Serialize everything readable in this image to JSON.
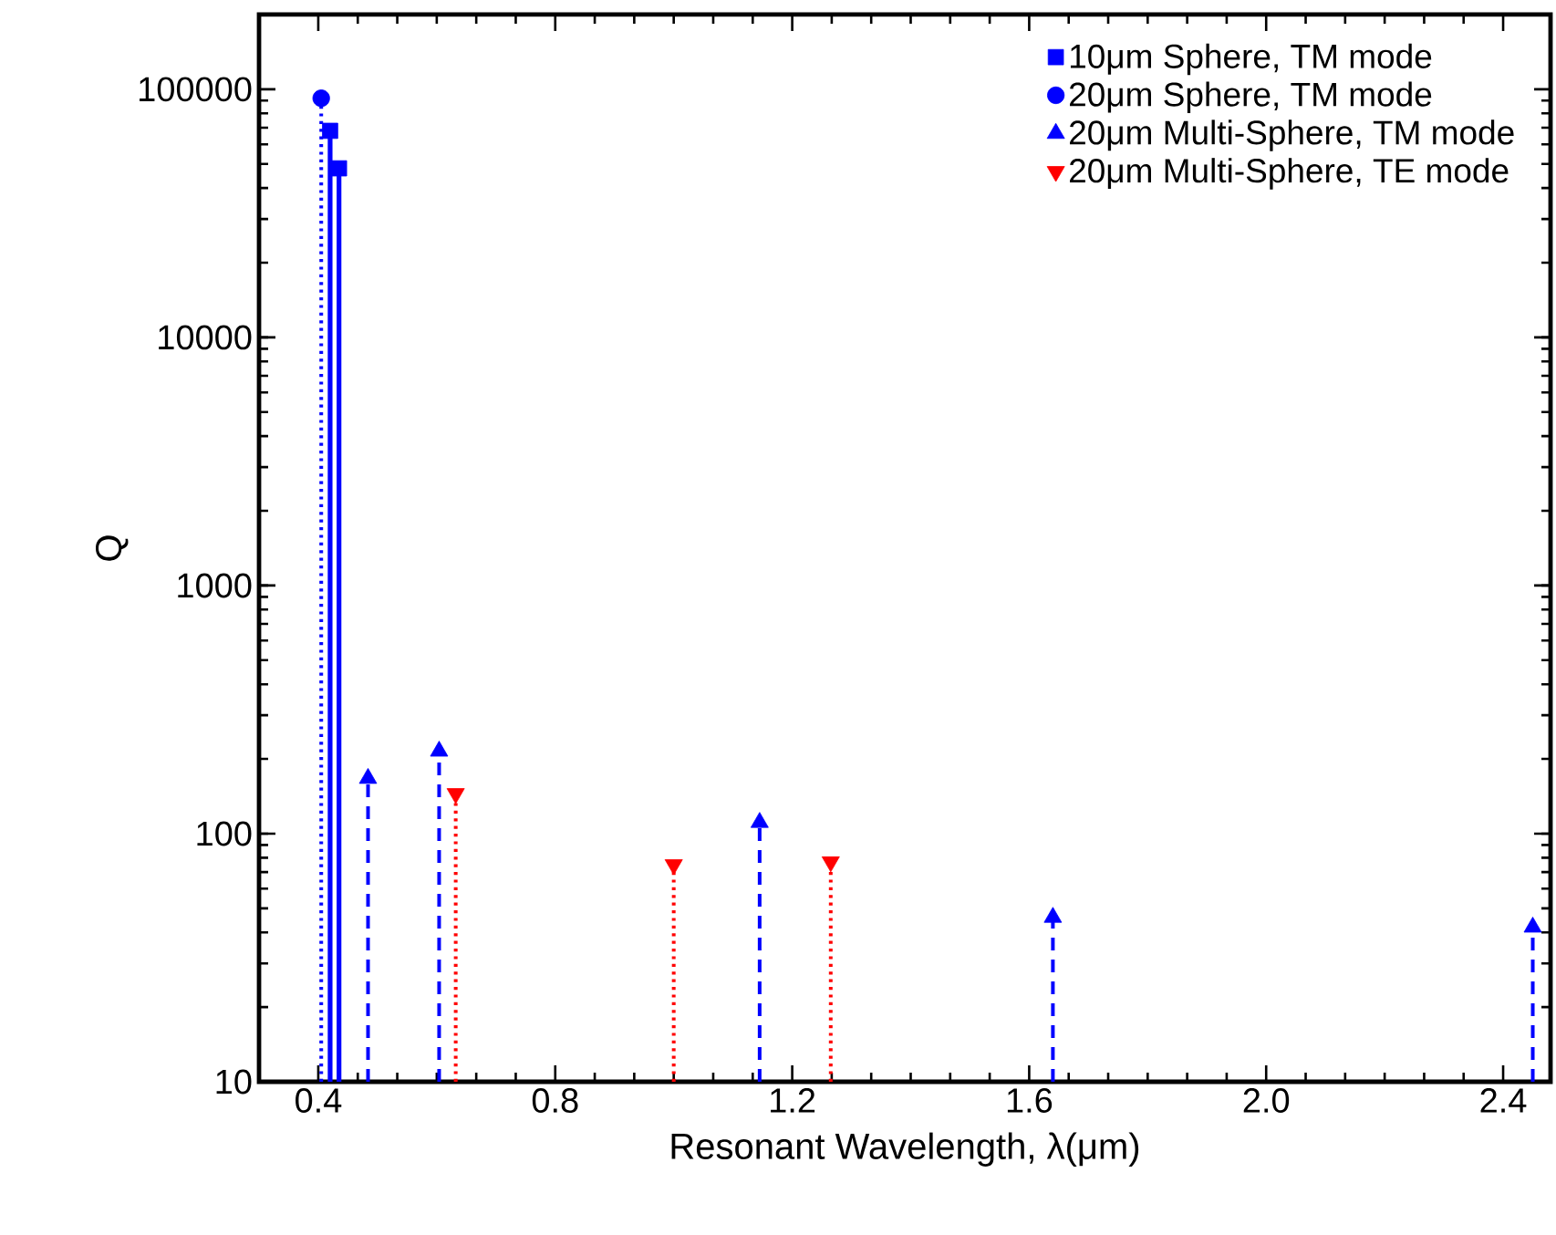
{
  "chart_data": {
    "type": "lollipop",
    "xlabel": "Resonant Wavelength, λ(μm)",
    "ylabel": "Q",
    "log": "y",
    "legend": "top right",
    "xlim": [
      0.3,
      2.48
    ],
    "ylim": [
      10,
      200000
    ],
    "xticks": [
      0.4,
      0.8,
      1.2,
      1.6,
      {
        "value": 2.0,
        "label": "2.0"
      },
      2.4
    ],
    "yticks": [
      10,
      100,
      1000,
      10000,
      100000
    ],
    "series": [
      {
        "name": "10μm Sphere, TM mode",
        "color": "#0000ff",
        "marker": "square",
        "line_style": "solid",
        "x": [
          0.42,
          0.435
        ],
        "values": [
          68000,
          48000
        ]
      },
      {
        "name": "20μm Sphere, TM mode",
        "color": "#0000ff",
        "marker": "circle",
        "line_style": "dotted",
        "x": [
          0.405
        ],
        "values": [
          92000
        ]
      },
      {
        "name": "20μm Multi-Sphere, TM mode",
        "color": "#0000ff",
        "marker": "triangle",
        "line_style": "dashed",
        "x": [
          0.484,
          0.604,
          1.145,
          1.64,
          2.45
        ],
        "values": [
          167,
          215,
          111,
          46,
          42
        ]
      },
      {
        "name": "20μm Multi-Sphere, TE mode",
        "color": "#ff0000",
        "marker": "triangle-down",
        "line_style": "dotted",
        "x": [
          0.632,
          1.0,
          1.265
        ],
        "values": [
          145,
          75,
          77
        ]
      }
    ]
  }
}
